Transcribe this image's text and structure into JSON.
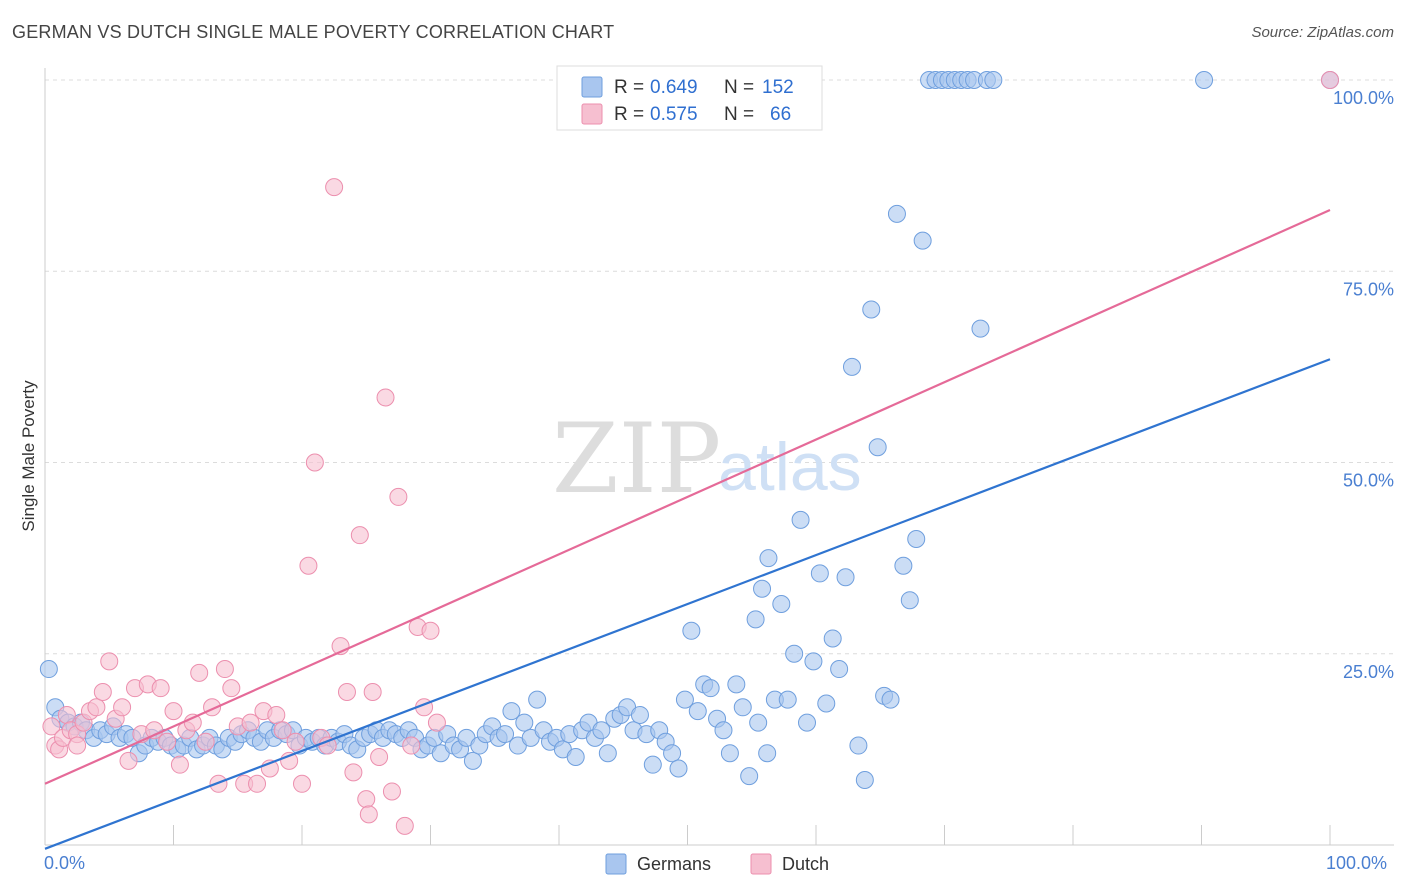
{
  "header": {
    "title": "GERMAN VS DUTCH SINGLE MALE POVERTY CORRELATION CHART",
    "source": "Source: ZipAtlas.com"
  },
  "colors": {
    "germans_fill": "#a9c6ef",
    "germans_stroke": "#6f9fde",
    "germans_line": "#2f74d0",
    "dutch_fill": "#f6bfd0",
    "dutch_stroke": "#ec8fae",
    "dutch_line": "#e56a98",
    "tick_label": "#4a7fd1",
    "grid": "#dcdcdc"
  },
  "legend": {
    "rows": [
      {
        "r_label": "R =",
        "r_value": "0.649",
        "n_label": "N =",
        "n_value": "152"
      },
      {
        "r_label": "R =",
        "r_value": "0.575",
        "n_label": "N =",
        "n_value": "66"
      }
    ]
  },
  "bottom_legend": [
    "Germans",
    "Dutch"
  ],
  "watermark": {
    "zip": "ZIP",
    "atlas": "atlas"
  },
  "chart_data": {
    "type": "scatter",
    "title": "GERMAN VS DUTCH SINGLE MALE POVERTY CORRELATION CHART",
    "xlabel": "",
    "ylabel": "Single Male Poverty",
    "xlim": [
      0,
      100
    ],
    "ylim": [
      0,
      100
    ],
    "x_tick_labels": [
      "0.0%",
      "100.0%"
    ],
    "y_tick_labels": [
      "25.0%",
      "50.0%",
      "75.0%",
      "100.0%"
    ],
    "y_ticks": [
      25,
      50,
      75,
      100
    ],
    "grid": true,
    "legend_position": "top-center",
    "series": [
      {
        "name": "Germans",
        "R": 0.649,
        "N": 152,
        "trend": {
          "x": [
            0,
            100
          ],
          "y": [
            -0.5,
            63.5
          ]
        },
        "points": [
          [
            0.3,
            23
          ],
          [
            0.8,
            18
          ],
          [
            1.2,
            16.5
          ],
          [
            1.8,
            16
          ],
          [
            2.3,
            15.5
          ],
          [
            2.8,
            16
          ],
          [
            3.2,
            15
          ],
          [
            3.8,
            14
          ],
          [
            4.3,
            15
          ],
          [
            4.8,
            14.5
          ],
          [
            5.3,
            15.5
          ],
          [
            5.8,
            14
          ],
          [
            6.3,
            14.5
          ],
          [
            6.8,
            14
          ],
          [
            7.3,
            12
          ],
          [
            7.8,
            13
          ],
          [
            8.3,
            14
          ],
          [
            8.8,
            13.5
          ],
          [
            9.3,
            14
          ],
          [
            9.8,
            13
          ],
          [
            10.3,
            12.5
          ],
          [
            10.8,
            13
          ],
          [
            11.3,
            14
          ],
          [
            11.8,
            12.5
          ],
          [
            12.3,
            13
          ],
          [
            12.8,
            14
          ],
          [
            13.3,
            13
          ],
          [
            13.8,
            12.5
          ],
          [
            14.3,
            14
          ],
          [
            14.8,
            13.5
          ],
          [
            15.3,
            14.5
          ],
          [
            15.8,
            15
          ],
          [
            16.3,
            14
          ],
          [
            16.8,
            13.5
          ],
          [
            17.3,
            15
          ],
          [
            17.8,
            14
          ],
          [
            18.3,
            15
          ],
          [
            18.8,
            14.5
          ],
          [
            19.3,
            15
          ],
          [
            19.8,
            13
          ],
          [
            20.3,
            14
          ],
          [
            20.8,
            13.5
          ],
          [
            21.3,
            14
          ],
          [
            21.8,
            13
          ],
          [
            22.3,
            14
          ],
          [
            22.8,
            13.5
          ],
          [
            23.3,
            14.5
          ],
          [
            23.8,
            13
          ],
          [
            24.3,
            12.5
          ],
          [
            24.8,
            14
          ],
          [
            25.3,
            14.5
          ],
          [
            25.8,
            15
          ],
          [
            26.3,
            14
          ],
          [
            26.8,
            15
          ],
          [
            27.3,
            14.5
          ],
          [
            27.8,
            14
          ],
          [
            28.3,
            15
          ],
          [
            28.8,
            14
          ],
          [
            29.3,
            12.5
          ],
          [
            29.8,
            13
          ],
          [
            30.3,
            14
          ],
          [
            30.8,
            12
          ],
          [
            31.3,
            14.5
          ],
          [
            31.8,
            13
          ],
          [
            32.3,
            12.5
          ],
          [
            32.8,
            14
          ],
          [
            33.3,
            11
          ],
          [
            33.8,
            13
          ],
          [
            34.3,
            14.5
          ],
          [
            34.8,
            15.5
          ],
          [
            35.3,
            14
          ],
          [
            35.8,
            14.5
          ],
          [
            36.3,
            17.5
          ],
          [
            36.8,
            13
          ],
          [
            37.3,
            16
          ],
          [
            37.8,
            14
          ],
          [
            38.3,
            19
          ],
          [
            38.8,
            15
          ],
          [
            39.3,
            13.5
          ],
          [
            39.8,
            14
          ],
          [
            40.3,
            12.5
          ],
          [
            40.8,
            14.5
          ],
          [
            41.3,
            11.5
          ],
          [
            41.8,
            15
          ],
          [
            42.3,
            16
          ],
          [
            42.8,
            14
          ],
          [
            43.3,
            15
          ],
          [
            43.8,
            12
          ],
          [
            44.3,
            16.5
          ],
          [
            44.8,
            17
          ],
          [
            45.3,
            18
          ],
          [
            45.8,
            15
          ],
          [
            46.3,
            17
          ],
          [
            46.8,
            14.5
          ],
          [
            47.3,
            10.5
          ],
          [
            47.8,
            15
          ],
          [
            48.3,
            13.5
          ],
          [
            48.8,
            12
          ],
          [
            49.3,
            10
          ],
          [
            49.8,
            19
          ],
          [
            50.3,
            28
          ],
          [
            50.8,
            17.5
          ],
          [
            51.3,
            21
          ],
          [
            51.8,
            20.5
          ],
          [
            52.3,
            16.5
          ],
          [
            52.8,
            15
          ],
          [
            53.3,
            12
          ],
          [
            53.8,
            21
          ],
          [
            54.3,
            18
          ],
          [
            54.8,
            9
          ],
          [
            55.3,
            29.5
          ],
          [
            55.8,
            33.5
          ],
          [
            56.3,
            37.5
          ],
          [
            56.8,
            19
          ],
          [
            57.3,
            31.5
          ],
          [
            57.8,
            19
          ],
          [
            58.3,
            25
          ],
          [
            58.8,
            42.5
          ],
          [
            59.3,
            16
          ],
          [
            59.8,
            24
          ],
          [
            60.3,
            35.5
          ],
          [
            60.8,
            18.5
          ],
          [
            61.3,
            27
          ],
          [
            61.8,
            23
          ],
          [
            62.3,
            35
          ],
          [
            62.8,
            62.5
          ],
          [
            63.3,
            13
          ],
          [
            63.8,
            8.5
          ],
          [
            64.3,
            70
          ],
          [
            64.8,
            52
          ],
          [
            65.3,
            19.5
          ],
          [
            65.8,
            19
          ],
          [
            66.3,
            82.5
          ],
          [
            66.8,
            36.5
          ],
          [
            67.3,
            32
          ],
          [
            67.8,
            40
          ],
          [
            68.3,
            79
          ],
          [
            68.8,
            100
          ],
          [
            69.3,
            100
          ],
          [
            69.8,
            100
          ],
          [
            70.3,
            100
          ],
          [
            70.8,
            100
          ],
          [
            71.3,
            100
          ],
          [
            71.8,
            100
          ],
          [
            72.3,
            100
          ],
          [
            72.8,
            67.5
          ],
          [
            73.3,
            100
          ],
          [
            73.8,
            100
          ],
          [
            90.2,
            100
          ],
          [
            100,
            100
          ],
          [
            55.5,
            16
          ],
          [
            56.2,
            12
          ]
        ]
      },
      {
        "name": "Dutch",
        "R": 0.575,
        "N": 66,
        "trend": {
          "x": [
            0,
            100
          ],
          "y": [
            8,
            83
          ]
        },
        "points": [
          [
            0.5,
            15.5
          ],
          [
            0.8,
            13
          ],
          [
            1.1,
            12.5
          ],
          [
            1.4,
            14
          ],
          [
            1.7,
            17
          ],
          [
            2.0,
            15
          ],
          [
            2.5,
            14.5
          ],
          [
            3.0,
            16
          ],
          [
            3.5,
            17.5
          ],
          [
            4.0,
            18
          ],
          [
            4.5,
            20
          ],
          [
            5.0,
            24
          ],
          [
            5.5,
            16.5
          ],
          [
            6.0,
            18
          ],
          [
            6.5,
            11
          ],
          [
            7.0,
            20.5
          ],
          [
            7.5,
            14.5
          ],
          [
            8.0,
            21
          ],
          [
            8.5,
            15
          ],
          [
            9.0,
            20.5
          ],
          [
            9.5,
            13.5
          ],
          [
            10.0,
            17.5
          ],
          [
            10.5,
            10.5
          ],
          [
            11.0,
            15
          ],
          [
            11.5,
            16
          ],
          [
            12.0,
            22.5
          ],
          [
            12.5,
            13.5
          ],
          [
            13.0,
            18
          ],
          [
            13.5,
            8
          ],
          [
            14.0,
            23
          ],
          [
            14.5,
            20.5
          ],
          [
            15.0,
            15.5
          ],
          [
            15.5,
            8
          ],
          [
            16.0,
            16
          ],
          [
            16.5,
            8
          ],
          [
            17.0,
            17.5
          ],
          [
            17.5,
            10
          ],
          [
            18.0,
            17
          ],
          [
            18.5,
            15
          ],
          [
            19.0,
            11
          ],
          [
            19.5,
            13.5
          ],
          [
            20.0,
            8
          ],
          [
            20.5,
            36.5
          ],
          [
            21.0,
            50
          ],
          [
            21.5,
            14
          ],
          [
            22.0,
            13
          ],
          [
            22.5,
            86
          ],
          [
            23.0,
            26
          ],
          [
            23.5,
            20
          ],
          [
            24.0,
            9.5
          ],
          [
            24.5,
            40.5
          ],
          [
            25.0,
            6
          ],
          [
            25.5,
            20
          ],
          [
            26.0,
            11.5
          ],
          [
            26.5,
            58.5
          ],
          [
            27.0,
            7
          ],
          [
            27.5,
            45.5
          ],
          [
            28.0,
            2.5
          ],
          [
            28.5,
            13
          ],
          [
            29.0,
            28.5
          ],
          [
            29.5,
            18
          ],
          [
            30.0,
            28
          ],
          [
            30.5,
            16
          ],
          [
            25.2,
            4
          ],
          [
            2.5,
            13
          ],
          [
            100,
            100
          ]
        ]
      }
    ]
  }
}
